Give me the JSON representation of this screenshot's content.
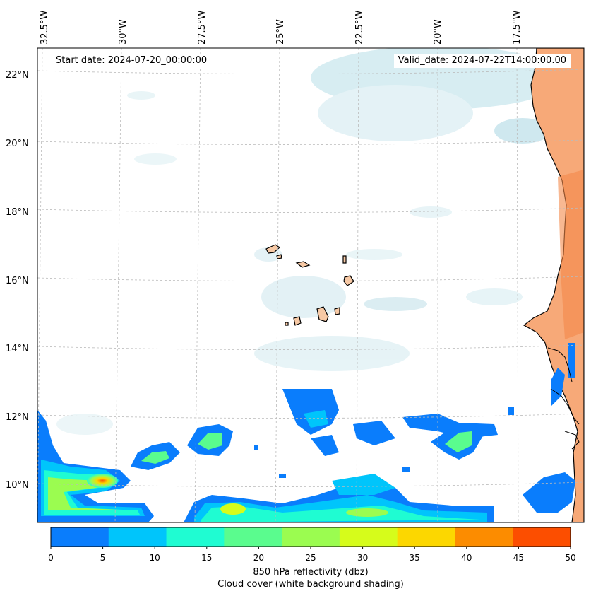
{
  "header": {
    "start_date": "Start date: 2024-07-20_00:00:00",
    "valid_date": "Valid_date: 2024-07-22T14:00:00.00"
  },
  "longitude_labels": [
    "32.5°W",
    "30°W",
    "27.5°W",
    "25°W",
    "22.5°W",
    "20°W",
    "17.5°W"
  ],
  "latitude_labels": [
    "22°N",
    "20°N",
    "18°N",
    "16°N",
    "14°N",
    "12°N",
    "10°N"
  ],
  "colorbar": {
    "ticks": [
      "0",
      "5",
      "10",
      "15",
      "20",
      "25",
      "30",
      "35",
      "40",
      "45",
      "50"
    ],
    "colors": [
      "#0a7dfc",
      "#00c5fb",
      "#1ffcd2",
      "#5afc8e",
      "#9bfc50",
      "#d6fc1b",
      "#fcd700",
      "#fc8c00",
      "#fc4e00"
    ],
    "label_line1": "850 hPa reflectivity (dbz)",
    "label_line2": "Cloud cover (white background shading)"
  },
  "palette": {
    "land": "#f7a978",
    "cloud": "#b8dfe8",
    "coast": "#000000",
    "grid": "#bbbbbb"
  }
}
